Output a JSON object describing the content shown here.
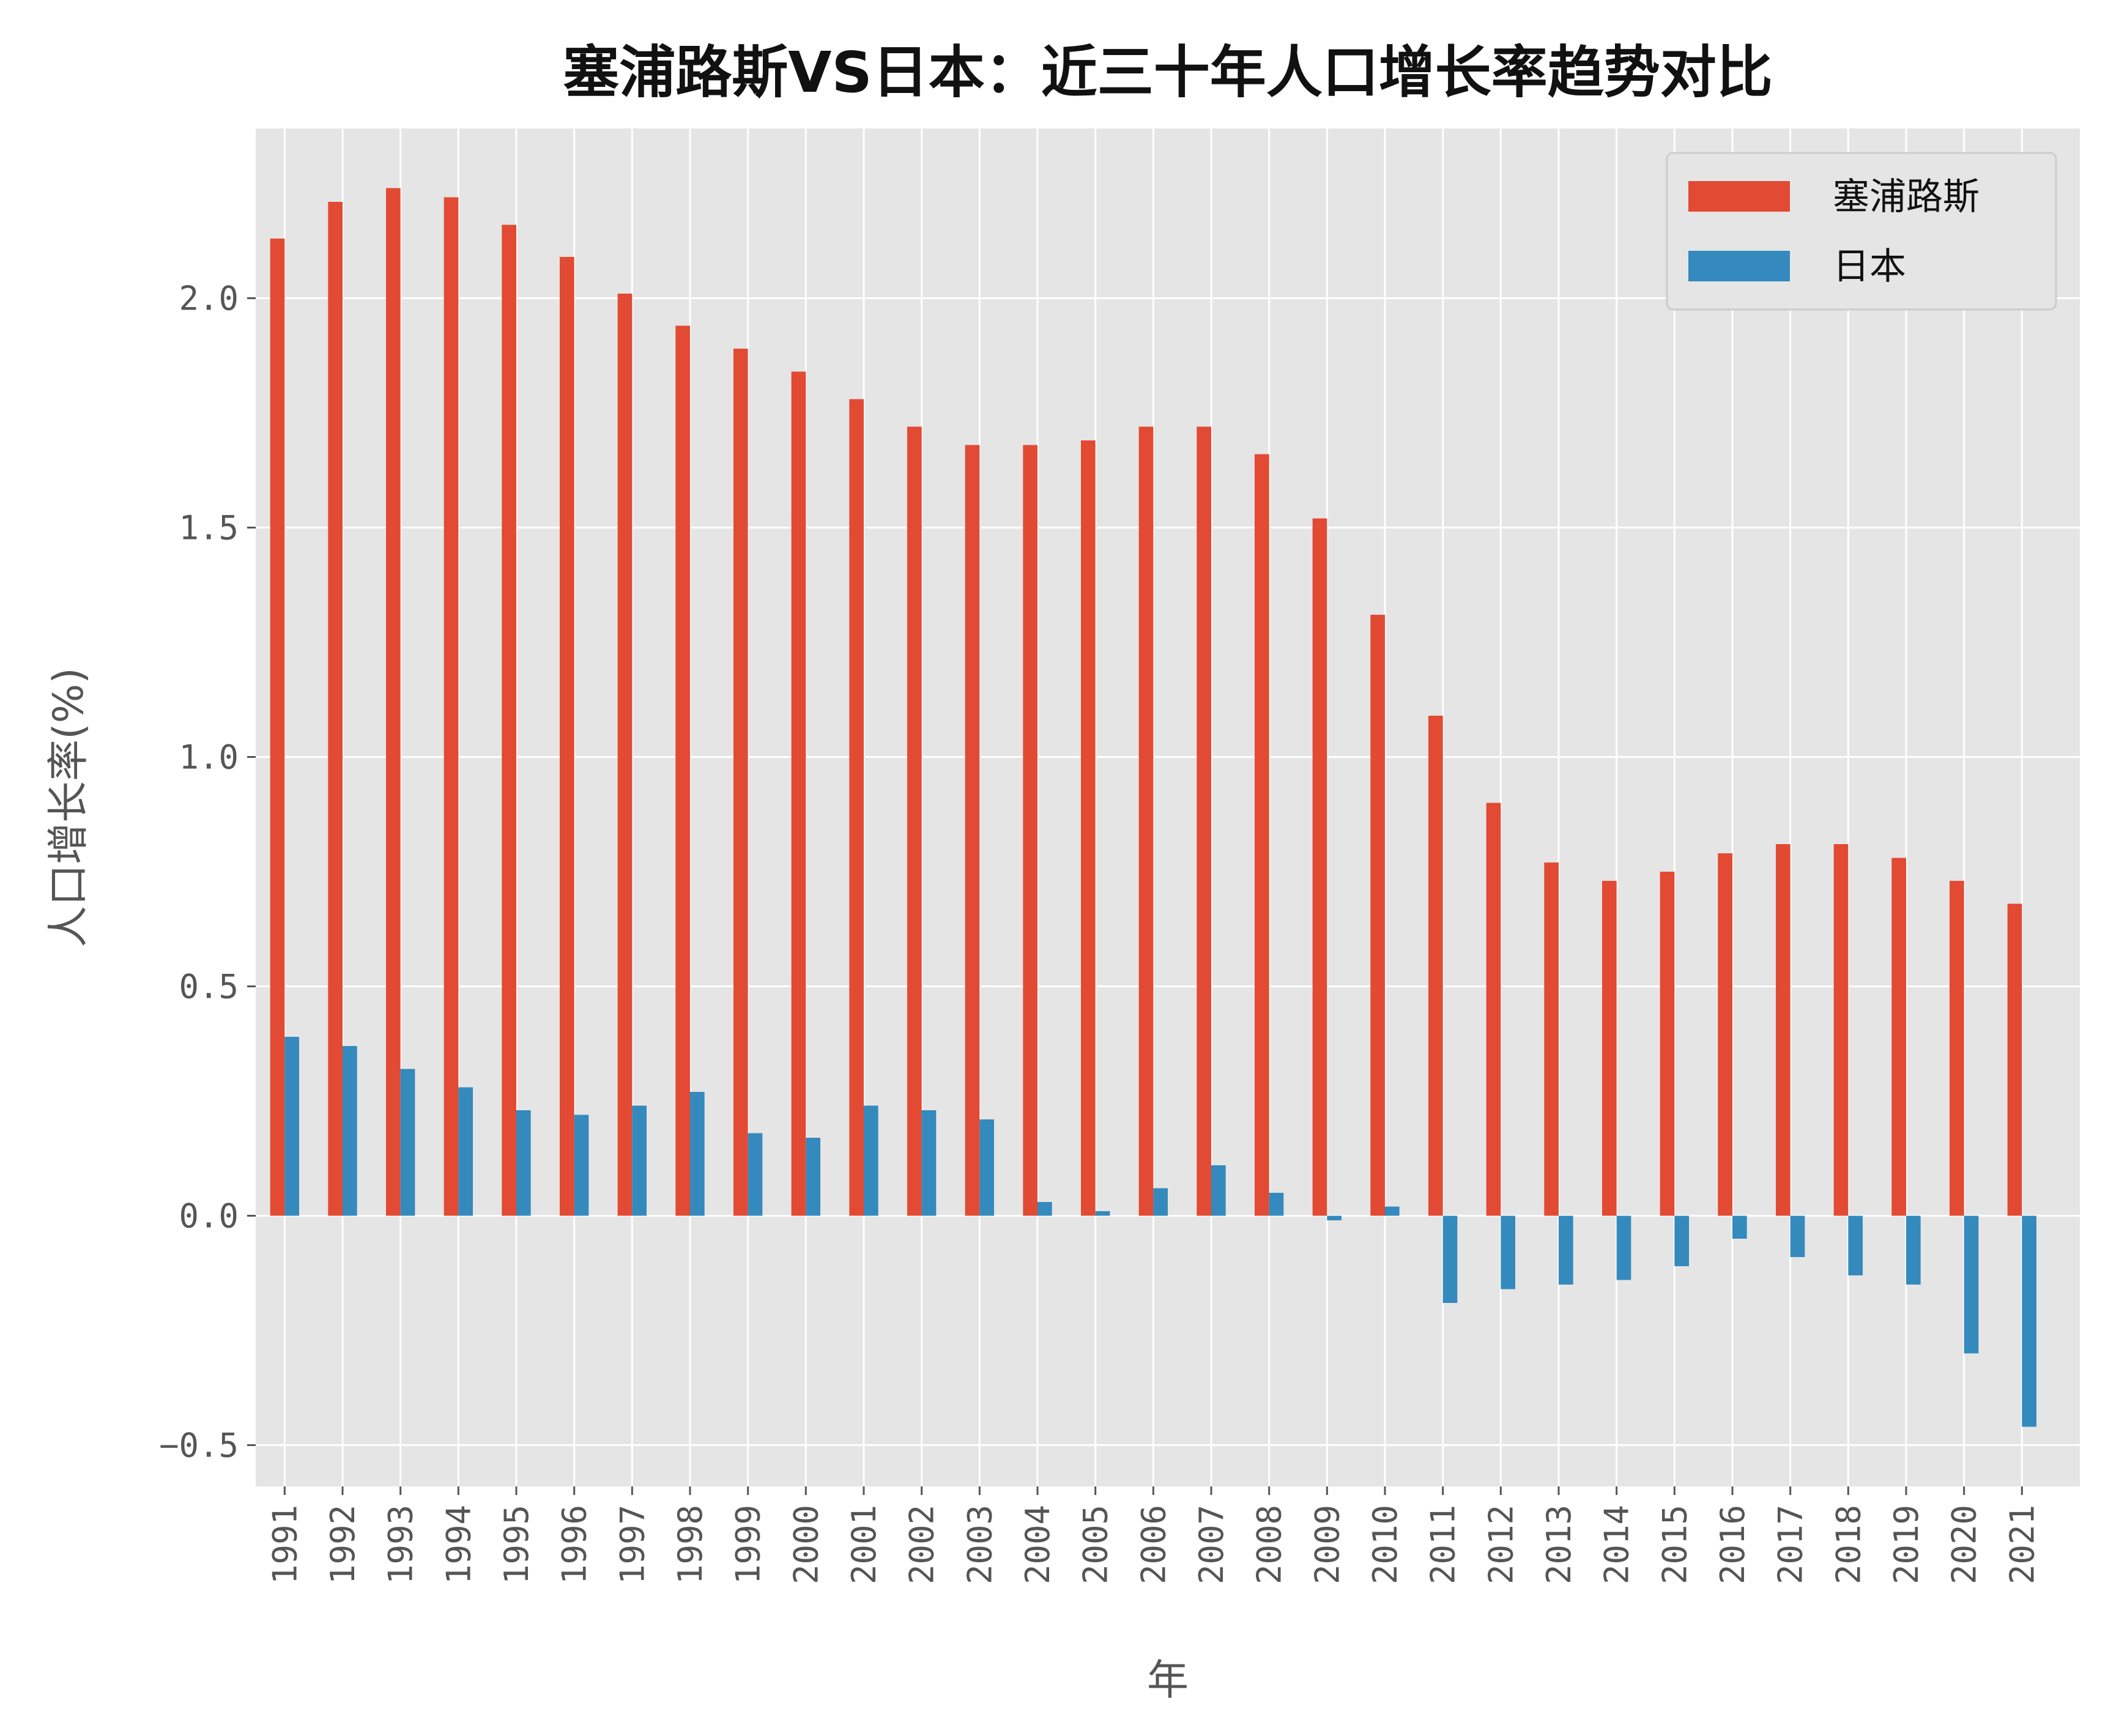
{
  "chart_data": {
    "type": "bar",
    "title": "塞浦路斯VS日本：近三十年人口增长率趋势对比",
    "xlabel": "年",
    "ylabel": "人口增长率(%)",
    "ylim": [
      -0.59,
      2.37
    ],
    "yticks": [
      -0.5,
      0.0,
      0.5,
      1.0,
      1.5,
      2.0
    ],
    "ytick_labels": [
      "−0.5",
      "0.0",
      "0.5",
      "1.0",
      "1.5",
      "2.0"
    ],
    "grid": true,
    "legend_position": "top-right",
    "categories": [
      "1991",
      "1992",
      "1993",
      "1994",
      "1995",
      "1996",
      "1997",
      "1998",
      "1999",
      "2000",
      "2001",
      "2002",
      "2003",
      "2004",
      "2005",
      "2006",
      "2007",
      "2008",
      "2009",
      "2010",
      "2011",
      "2012",
      "2013",
      "2014",
      "2015",
      "2016",
      "2017",
      "2018",
      "2019",
      "2020",
      "2021"
    ],
    "series": [
      {
        "name": "塞浦路斯",
        "color": "#E24A33",
        "values": [
          2.13,
          2.21,
          2.24,
          2.22,
          2.16,
          2.09,
          2.01,
          1.94,
          1.89,
          1.84,
          1.78,
          1.72,
          1.68,
          1.68,
          1.69,
          1.72,
          1.72,
          1.66,
          1.52,
          1.31,
          1.09,
          0.9,
          0.77,
          0.73,
          0.75,
          0.79,
          0.81,
          0.81,
          0.78,
          0.73,
          0.68
        ]
      },
      {
        "name": "日本",
        "color": "#348ABD",
        "values": [
          0.39,
          0.37,
          0.32,
          0.28,
          0.23,
          0.22,
          0.24,
          0.27,
          0.18,
          0.17,
          0.24,
          0.23,
          0.21,
          0.03,
          0.01,
          0.06,
          0.11,
          0.05,
          -0.01,
          0.02,
          -0.19,
          -0.16,
          -0.15,
          -0.14,
          -0.11,
          -0.05,
          -0.09,
          -0.13,
          -0.15,
          -0.3,
          -0.46
        ]
      }
    ]
  }
}
